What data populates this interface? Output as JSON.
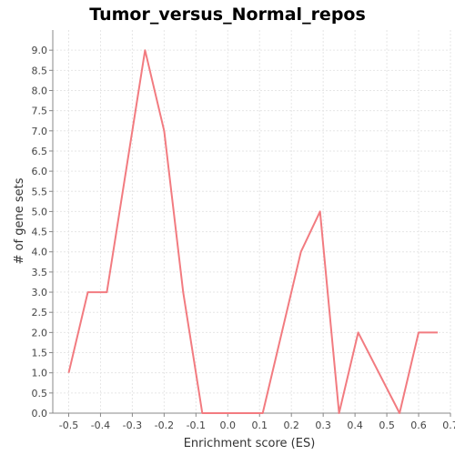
{
  "chart_data": {
    "type": "line",
    "title": "Tumor_versus_Normal_repos",
    "xlabel": "Enrichment score (ES)",
    "ylabel": "# of gene sets",
    "xlim": [
      -0.55,
      0.7
    ],
    "ylim": [
      0.0,
      9.5
    ],
    "xticks": [
      "-0.5",
      "-0.4",
      "-0.3",
      "-0.2",
      "-0.1",
      "0.0",
      "0.1",
      "0.2",
      "0.3",
      "0.4",
      "0.5",
      "0.6",
      "0.7"
    ],
    "yticks": [
      "0.0",
      "0.5",
      "1.0",
      "1.5",
      "2.0",
      "2.5",
      "3.0",
      "3.5",
      "4.0",
      "4.5",
      "5.0",
      "5.5",
      "6.0",
      "6.5",
      "7.0",
      "7.5",
      "8.0",
      "8.5",
      "9.0"
    ],
    "grid": true,
    "colors": {
      "series": "#f27b80",
      "background": "#ffffff"
    },
    "series": [
      {
        "x": [
          -0.5,
          -0.44,
          -0.38,
          -0.26,
          -0.2,
          -0.14,
          -0.08,
          0.11,
          0.23,
          0.29,
          0.35,
          0.41,
          0.54,
          0.6,
          0.66
        ],
        "y": [
          1,
          3,
          3,
          9,
          7,
          3,
          0,
          0,
          4,
          5,
          0,
          2,
          0,
          2,
          2
        ]
      }
    ]
  }
}
